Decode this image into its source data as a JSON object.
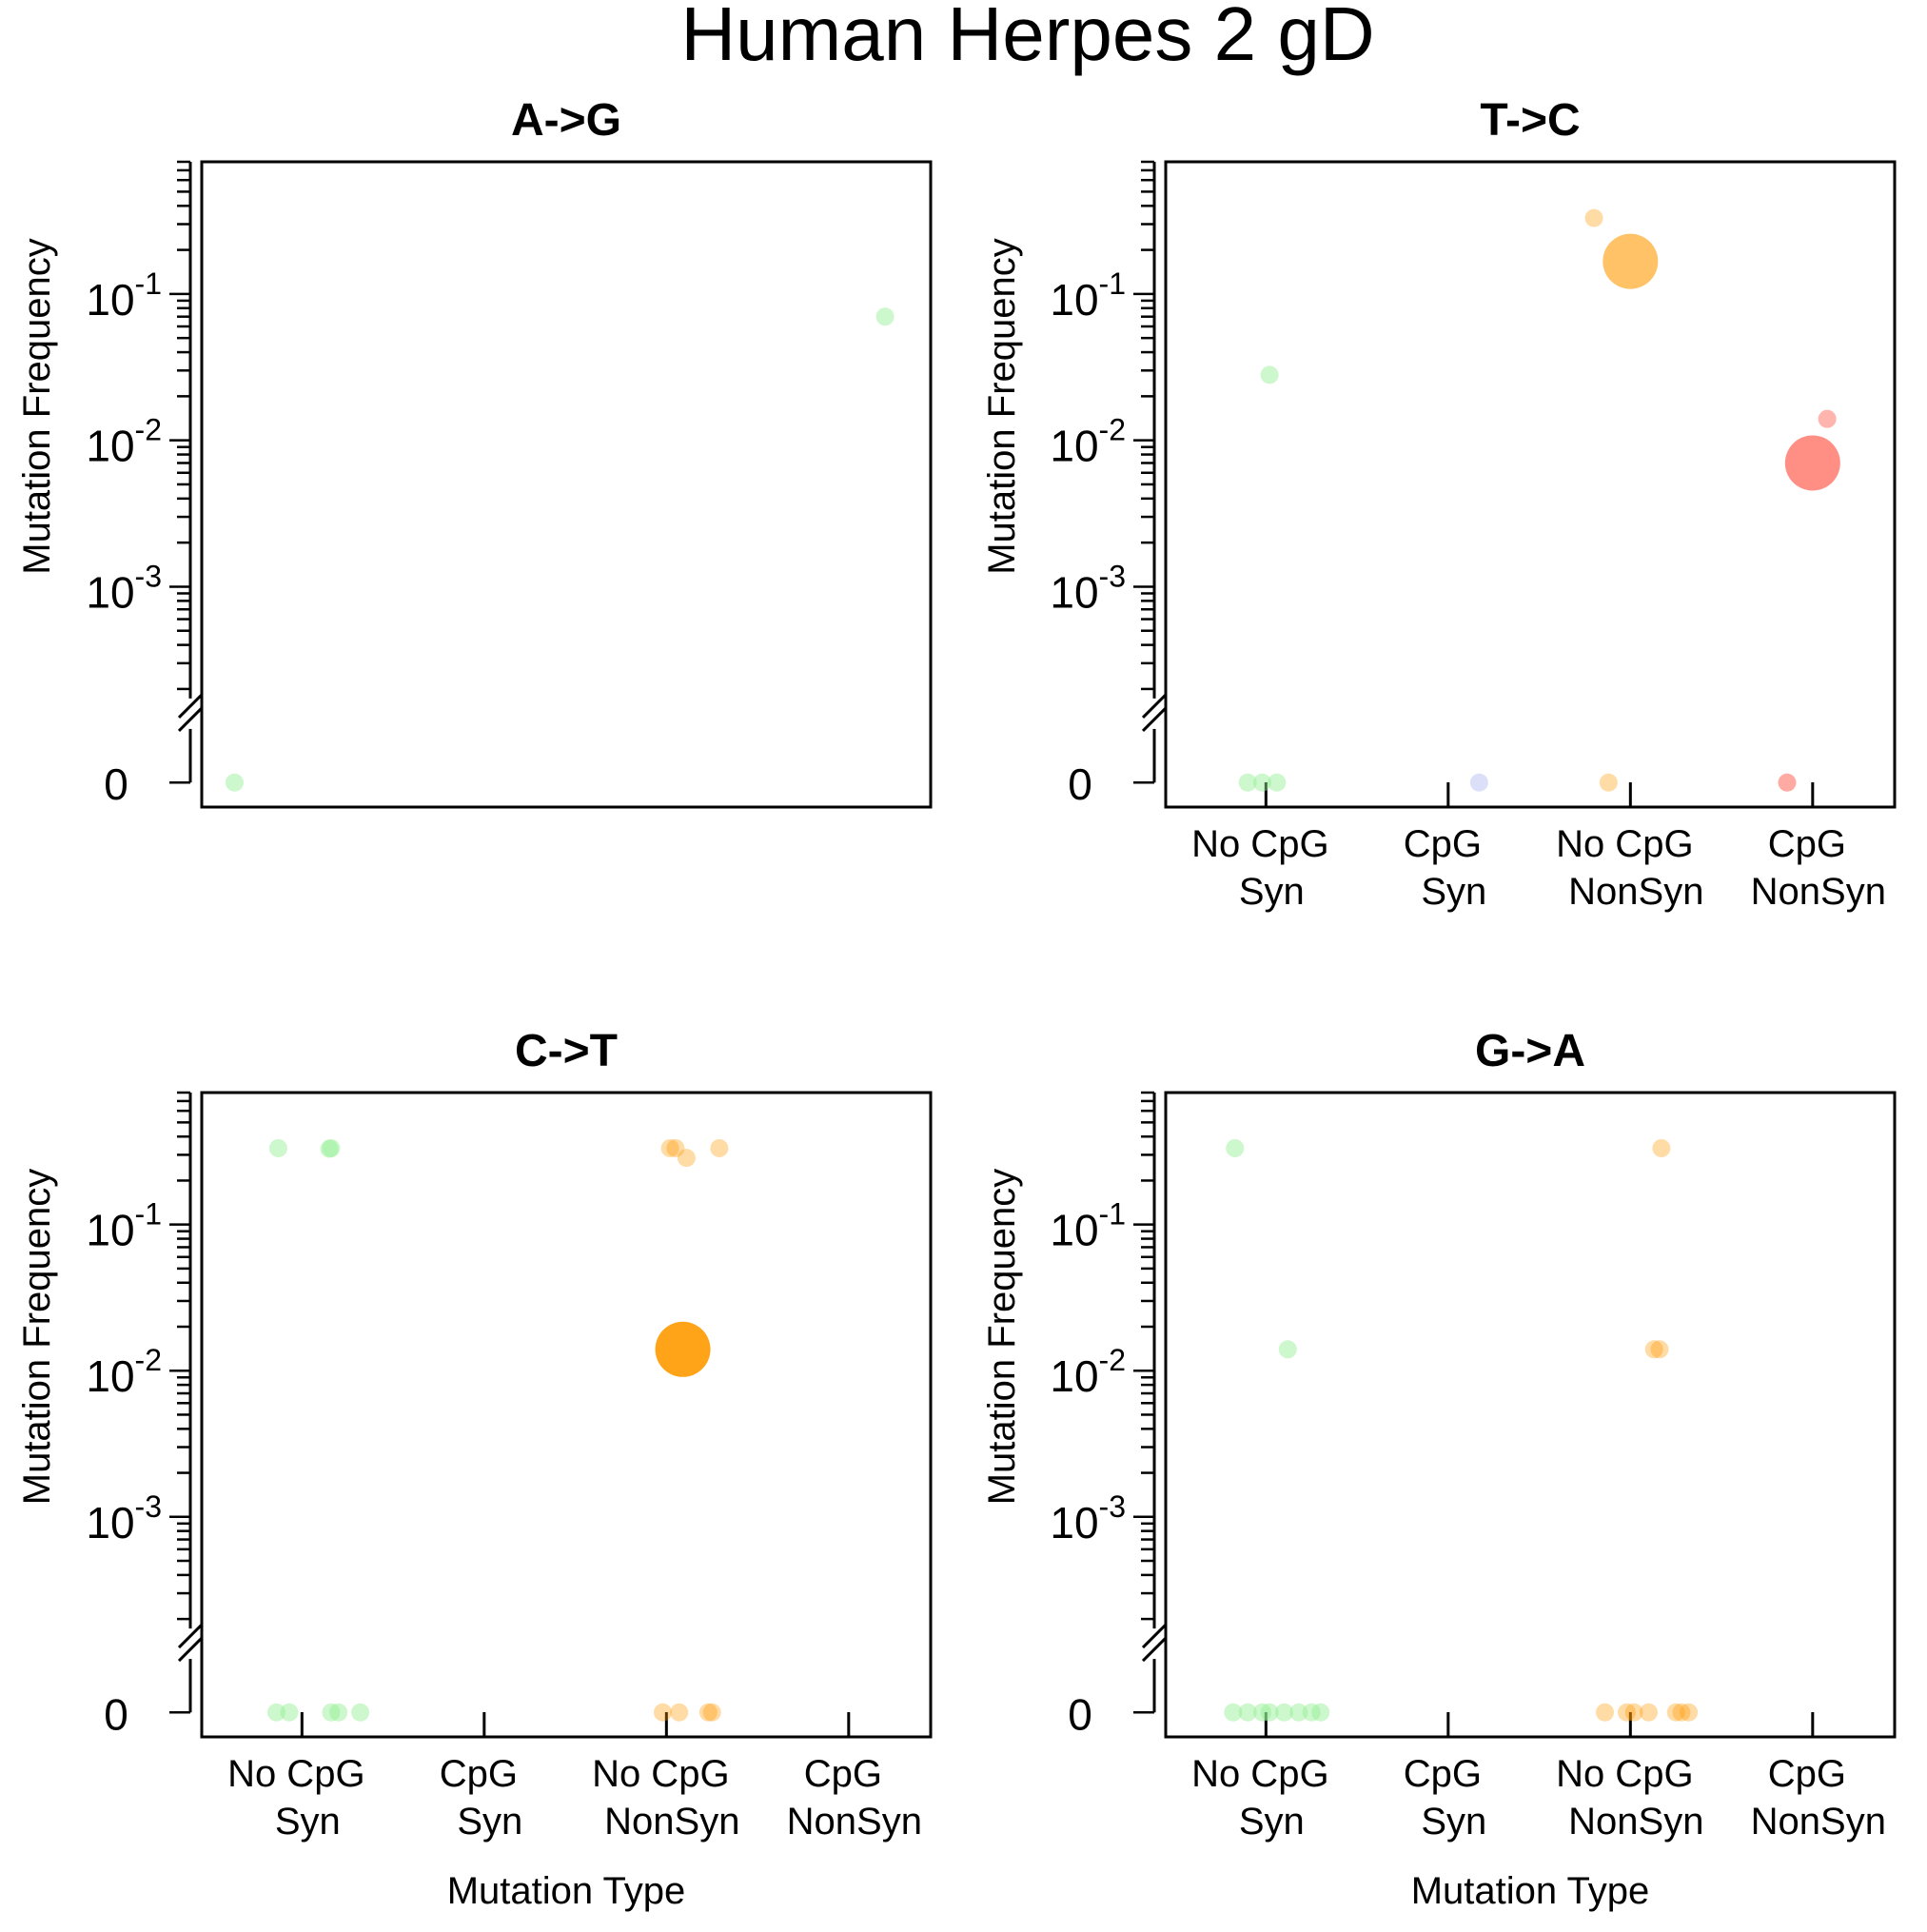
{
  "figure": {
    "title": "Human Herpes 2 gD",
    "ylabel": "Mutation Frequency",
    "xlabel": "Mutation Type",
    "y_tick_labels": [
      {
        "base": "10",
        "exp": "-1",
        "value": 0.1
      },
      {
        "base": "10",
        "exp": "-2",
        "value": 0.01
      },
      {
        "base": "10",
        "exp": "-3",
        "value": 0.001
      }
    ],
    "zero_label": "0"
  },
  "colors": {
    "no_cpg_syn": "#90EE90",
    "cpg_syn": "#B0B8F0",
    "no_cpg_nonsyn": "#FF9900",
    "cpg_nonsyn": "#FF4433"
  },
  "chart_data": [
    {
      "type": "scatter",
      "title": "A->G",
      "x_visible": false,
      "yscale": "log with zero break",
      "ylim": [
        0.0002,
        0.8
      ],
      "categories": [
        {
          "l1": "No CpG",
          "l2": "Syn"
        },
        {
          "l1": "CpG",
          "l2": "Syn"
        },
        {
          "l1": "No CpG",
          "l2": "NonSyn"
        },
        {
          "l1": "CpG",
          "l2": "NonSyn"
        }
      ],
      "points": [
        {
          "x": 0.63,
          "y": 0,
          "size": 1,
          "color": "no_cpg_syn",
          "alpha": 0.45
        },
        {
          "x": 4.2,
          "y": 0.07,
          "size": 1,
          "color": "no_cpg_syn",
          "alpha": 0.45
        }
      ]
    },
    {
      "type": "scatter",
      "title": "T->C",
      "x_visible": true,
      "yscale": "log with zero break",
      "ylim": [
        0.0002,
        0.8
      ],
      "categories": [
        {
          "l1": "No CpG",
          "l2": "Syn"
        },
        {
          "l1": "CpG",
          "l2": "Syn"
        },
        {
          "l1": "No CpG",
          "l2": "NonSyn"
        },
        {
          "l1": "CpG",
          "l2": "NonSyn"
        }
      ],
      "points": [
        {
          "x": 0.9,
          "y": 0,
          "size": 1,
          "color": "no_cpg_syn",
          "alpha": 0.45
        },
        {
          "x": 0.98,
          "y": 0,
          "size": 1,
          "color": "no_cpg_syn",
          "alpha": 0.45
        },
        {
          "x": 1.06,
          "y": 0,
          "size": 1,
          "color": "no_cpg_syn",
          "alpha": 0.45
        },
        {
          "x": 1.02,
          "y": 0.028,
          "size": 1,
          "color": "no_cpg_syn",
          "alpha": 0.45
        },
        {
          "x": 2.17,
          "y": 0,
          "size": 1,
          "color": "cpg_syn",
          "alpha": 0.45
        },
        {
          "x": 2.8,
          "y": 0.33,
          "size": 1,
          "color": "no_cpg_nonsyn",
          "alpha": 0.35
        },
        {
          "x": 3.0,
          "y": 0.167,
          "size": 3,
          "color": "no_cpg_nonsyn",
          "alpha": 0.6
        },
        {
          "x": 2.88,
          "y": 0,
          "size": 1,
          "color": "no_cpg_nonsyn",
          "alpha": 0.35
        },
        {
          "x": 4.08,
          "y": 0.014,
          "size": 1,
          "color": "cpg_nonsyn",
          "alpha": 0.4
        },
        {
          "x": 4.0,
          "y": 0.007,
          "size": 3,
          "color": "cpg_nonsyn",
          "alpha": 0.6
        },
        {
          "x": 3.86,
          "y": 0,
          "size": 1,
          "color": "cpg_nonsyn",
          "alpha": 0.45
        }
      ]
    },
    {
      "type": "scatter",
      "title": "C->T",
      "x_visible": true,
      "yscale": "log with zero break",
      "ylim": [
        0.0002,
        0.8
      ],
      "categories": [
        {
          "l1": "No CpG",
          "l2": "Syn"
        },
        {
          "l1": "CpG",
          "l2": "Syn"
        },
        {
          "l1": "No CpG",
          "l2": "NonSyn"
        },
        {
          "l1": "CpG",
          "l2": "NonSyn"
        }
      ],
      "points": [
        {
          "x": 0.87,
          "y": 0.333,
          "size": 1,
          "color": "no_cpg_syn",
          "alpha": 0.45
        },
        {
          "x": 1.15,
          "y": 0.33,
          "size": 1,
          "color": "no_cpg_syn",
          "alpha": 0.45
        },
        {
          "x": 1.16,
          "y": 0.333,
          "size": 1,
          "color": "no_cpg_syn",
          "alpha": 0.45
        },
        {
          "x": 0.86,
          "y": 0,
          "size": 1,
          "color": "no_cpg_syn",
          "alpha": 0.45
        },
        {
          "x": 0.93,
          "y": 0,
          "size": 1,
          "color": "no_cpg_syn",
          "alpha": 0.45
        },
        {
          "x": 1.16,
          "y": 0,
          "size": 1,
          "color": "no_cpg_syn",
          "alpha": 0.45
        },
        {
          "x": 1.2,
          "y": 0,
          "size": 1,
          "color": "no_cpg_syn",
          "alpha": 0.45
        },
        {
          "x": 1.32,
          "y": 0,
          "size": 1,
          "color": "no_cpg_syn",
          "alpha": 0.45
        },
        {
          "x": 3.02,
          "y": 0.333,
          "size": 1,
          "color": "no_cpg_nonsyn",
          "alpha": 0.35
        },
        {
          "x": 3.05,
          "y": 0.333,
          "size": 1,
          "color": "no_cpg_nonsyn",
          "alpha": 0.35
        },
        {
          "x": 3.11,
          "y": 0.286,
          "size": 1,
          "color": "no_cpg_nonsyn",
          "alpha": 0.35
        },
        {
          "x": 3.29,
          "y": 0.333,
          "size": 1,
          "color": "no_cpg_nonsyn",
          "alpha": 0.35
        },
        {
          "x": 3.09,
          "y": 0.014,
          "size": 3,
          "color": "no_cpg_nonsyn",
          "alpha": 0.9
        },
        {
          "x": 2.98,
          "y": 0,
          "size": 1,
          "color": "no_cpg_nonsyn",
          "alpha": 0.35
        },
        {
          "x": 3.07,
          "y": 0,
          "size": 1,
          "color": "no_cpg_nonsyn",
          "alpha": 0.35
        },
        {
          "x": 3.23,
          "y": 0,
          "size": 1,
          "color": "no_cpg_nonsyn",
          "alpha": 0.35
        },
        {
          "x": 3.25,
          "y": 0,
          "size": 1,
          "color": "no_cpg_nonsyn",
          "alpha": 0.35
        }
      ]
    },
    {
      "type": "scatter",
      "title": "G->A",
      "x_visible": true,
      "yscale": "log with zero break",
      "ylim": [
        0.0002,
        0.8
      ],
      "categories": [
        {
          "l1": "No CpG",
          "l2": "Syn"
        },
        {
          "l1": "CpG",
          "l2": "Syn"
        },
        {
          "l1": "No CpG",
          "l2": "NonSyn"
        },
        {
          "l1": "CpG",
          "l2": "NonSyn"
        }
      ],
      "points": [
        {
          "x": 0.83,
          "y": 0.333,
          "size": 1,
          "color": "no_cpg_syn",
          "alpha": 0.45
        },
        {
          "x": 1.12,
          "y": 0.014,
          "size": 1,
          "color": "no_cpg_syn",
          "alpha": 0.45
        },
        {
          "x": 0.82,
          "y": 0,
          "size": 1,
          "color": "no_cpg_syn",
          "alpha": 0.45
        },
        {
          "x": 0.9,
          "y": 0,
          "size": 1,
          "color": "no_cpg_syn",
          "alpha": 0.45
        },
        {
          "x": 0.98,
          "y": 0,
          "size": 1,
          "color": "no_cpg_syn",
          "alpha": 0.45
        },
        {
          "x": 1.02,
          "y": 0,
          "size": 1,
          "color": "no_cpg_syn",
          "alpha": 0.45
        },
        {
          "x": 1.1,
          "y": 0,
          "size": 1,
          "color": "no_cpg_syn",
          "alpha": 0.45
        },
        {
          "x": 1.18,
          "y": 0,
          "size": 1,
          "color": "no_cpg_syn",
          "alpha": 0.45
        },
        {
          "x": 1.25,
          "y": 0,
          "size": 1,
          "color": "no_cpg_syn",
          "alpha": 0.45
        },
        {
          "x": 1.3,
          "y": 0,
          "size": 1,
          "color": "no_cpg_syn",
          "alpha": 0.45
        },
        {
          "x": 3.17,
          "y": 0.333,
          "size": 1,
          "color": "no_cpg_nonsyn",
          "alpha": 0.35
        },
        {
          "x": 3.13,
          "y": 0.014,
          "size": 1,
          "color": "no_cpg_nonsyn",
          "alpha": 0.35
        },
        {
          "x": 3.16,
          "y": 0.014,
          "size": 1,
          "color": "no_cpg_nonsyn",
          "alpha": 0.35
        },
        {
          "x": 2.86,
          "y": 0,
          "size": 1,
          "color": "no_cpg_nonsyn",
          "alpha": 0.35
        },
        {
          "x": 2.98,
          "y": 0,
          "size": 1,
          "color": "no_cpg_nonsyn",
          "alpha": 0.35
        },
        {
          "x": 3.02,
          "y": 0,
          "size": 1,
          "color": "no_cpg_nonsyn",
          "alpha": 0.35
        },
        {
          "x": 3.1,
          "y": 0,
          "size": 1,
          "color": "no_cpg_nonsyn",
          "alpha": 0.35
        },
        {
          "x": 3.25,
          "y": 0,
          "size": 1,
          "color": "no_cpg_nonsyn",
          "alpha": 0.35
        },
        {
          "x": 3.28,
          "y": 0,
          "size": 1,
          "color": "no_cpg_nonsyn",
          "alpha": 0.35
        },
        {
          "x": 3.32,
          "y": 0,
          "size": 1,
          "color": "no_cpg_nonsyn",
          "alpha": 0.35
        }
      ]
    }
  ]
}
